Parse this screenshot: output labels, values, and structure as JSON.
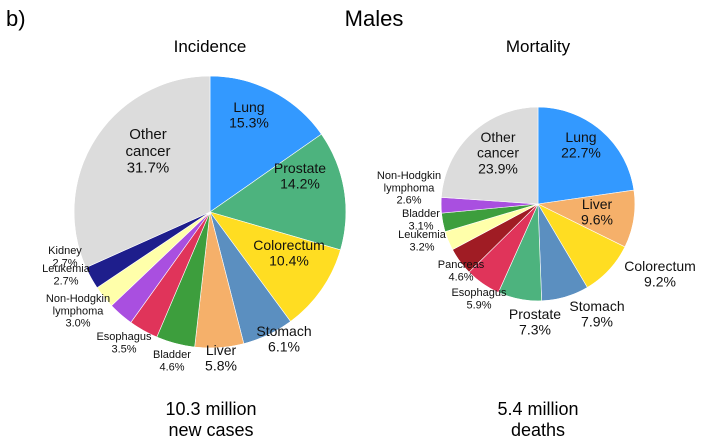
{
  "figure": {
    "panel_label": "b)",
    "title": "Males"
  },
  "chart_data": [
    {
      "type": "pie",
      "title": "Incidence",
      "total_line1": "10.3 million",
      "total_line2": "new cases",
      "start_angle_deg": 0,
      "direction": "clockwise",
      "slices": [
        {
          "name": "Lung",
          "value": 15.3,
          "label": "15.3%",
          "color": "#3399ff"
        },
        {
          "name": "Prostate",
          "value": 14.2,
          "label": "14.2%",
          "color": "#4db37e"
        },
        {
          "name": "Colorectum",
          "value": 10.4,
          "label": "10.4%",
          "color": "#ffdd22"
        },
        {
          "name": "Stomach",
          "value": 6.1,
          "label": "6.1%",
          "color": "#5b8fc0"
        },
        {
          "name": "Liver",
          "value": 5.8,
          "label": "5.8%",
          "color": "#f5b06a"
        },
        {
          "name": "Bladder",
          "value": 4.6,
          "label": "4.6%",
          "color": "#3d9e3d"
        },
        {
          "name": "Esophagus",
          "value": 3.5,
          "label": "3.5%",
          "color": "#e0345a"
        },
        {
          "name": "Non-Hodgkin lymphoma",
          "value": 3.0,
          "label": "3.0%",
          "color": "#a94fe0"
        },
        {
          "name": "Leukemia",
          "value": 2.7,
          "label": "2.7%",
          "color": "#ffffaa"
        },
        {
          "name": "Kidney",
          "value": 2.7,
          "label": "2.7%",
          "color": "#1e1e8c"
        },
        {
          "name": "Other cancer",
          "value": 31.7,
          "label": "31.7%",
          "color": "#dcdcdc"
        }
      ]
    },
    {
      "type": "pie",
      "title": "Mortality",
      "total_line1": "5.4 million",
      "total_line2": "deaths",
      "start_angle_deg": 0,
      "direction": "clockwise",
      "slices": [
        {
          "name": "Lung",
          "value": 22.7,
          "label": "22.7%",
          "color": "#3399ff"
        },
        {
          "name": "Liver",
          "value": 9.6,
          "label": "9.6%",
          "color": "#f5b06a"
        },
        {
          "name": "Colorectum",
          "value": 9.2,
          "label": "9.2%",
          "color": "#ffdd22"
        },
        {
          "name": "Stomach",
          "value": 7.9,
          "label": "7.9%",
          "color": "#5b8fc0"
        },
        {
          "name": "Prostate",
          "value": 7.3,
          "label": "7.3%",
          "color": "#4db37e"
        },
        {
          "name": "Esophagus",
          "value": 5.9,
          "label": "5.9%",
          "color": "#e0345a"
        },
        {
          "name": "Pancreas",
          "value": 4.6,
          "label": "4.6%",
          "color": "#a01c24"
        },
        {
          "name": "Leukemia",
          "value": 3.2,
          "label": "3.2%",
          "color": "#ffffaa"
        },
        {
          "name": "Bladder",
          "value": 3.1,
          "label": "3.1%",
          "color": "#3d9e3d"
        },
        {
          "name": "Non-Hodgkin lymphoma",
          "value": 2.6,
          "label": "2.6%",
          "color": "#a94fe0"
        },
        {
          "name": "Other cancer",
          "value": 23.9,
          "label": "23.9%",
          "color": "#dcdcdc"
        }
      ]
    }
  ]
}
